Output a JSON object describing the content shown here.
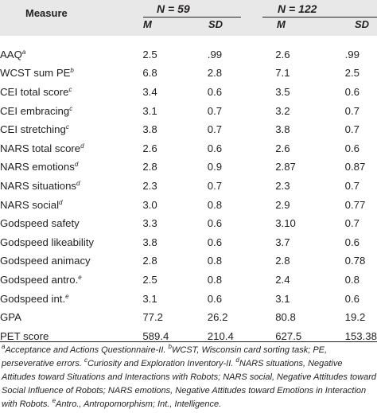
{
  "header": {
    "measure_label": "Measure",
    "groups": [
      {
        "label": "N = 59",
        "m_label": "M",
        "sd_label": "SD"
      },
      {
        "label": "N = 122",
        "m_label": "M",
        "sd_label": "SD"
      }
    ]
  },
  "rows": [
    {
      "measure": "AAQ",
      "sup": "a",
      "m1": "2.5",
      "sd1": ".99",
      "m2": "2.6",
      "sd2": ".99"
    },
    {
      "measure": "WCST sum PE",
      "sup": "b",
      "m1": "6.8",
      "sd1": "2.8",
      "m2": "7.1",
      "sd2": "2.5"
    },
    {
      "measure": "CEI total score",
      "sup": "c",
      "m1": "3.4",
      "sd1": "0.6",
      "m2": "3.5",
      "sd2": "0.6"
    },
    {
      "measure": "CEI embracing",
      "sup": "c",
      "m1": "3.1",
      "sd1": "0.7",
      "m2": "3.2",
      "sd2": "0.7"
    },
    {
      "measure": "CEI stretching",
      "sup": "c",
      "m1": "3.8",
      "sd1": "0.7",
      "m2": "3.8",
      "sd2": "0.7"
    },
    {
      "measure": "NARS total score",
      "sup": "d",
      "m1": "2.6",
      "sd1": "0.6",
      "m2": "2.6",
      "sd2": "0.6"
    },
    {
      "measure": "NARS emotions",
      "sup": "d",
      "m1": "2.8",
      "sd1": "0.9",
      "m2": "2.87",
      "sd2": "0.87"
    },
    {
      "measure": "NARS situations",
      "sup": "d",
      "m1": "2.3",
      "sd1": "0.7",
      "m2": "2.3",
      "sd2": "0.7"
    },
    {
      "measure": "NARS social",
      "sup": "d",
      "m1": "3.0",
      "sd1": "0.8",
      "m2": "2.9",
      "sd2": "0.77"
    },
    {
      "measure": "Godspeed safety",
      "sup": "",
      "m1": "3.3",
      "sd1": "0.6",
      "m2": "3.10",
      "sd2": "0.7"
    },
    {
      "measure": "Godspeed likeability",
      "sup": "",
      "m1": "3.8",
      "sd1": "0.6",
      "m2": "3.7",
      "sd2": "0.6"
    },
    {
      "measure": "Godspeed animacy",
      "sup": "",
      "m1": "2.8",
      "sd1": "0.8",
      "m2": "2.8",
      "sd2": "0.78"
    },
    {
      "measure": "Godspeed antro.",
      "sup": "e",
      "m1": "2.5",
      "sd1": "0.8",
      "m2": "2.4",
      "sd2": "0.8"
    },
    {
      "measure": "Godspeed int.",
      "sup": "e",
      "m1": "3.1",
      "sd1": "0.6",
      "m2": "3.1",
      "sd2": "0.6"
    },
    {
      "measure": "GPA",
      "sup": "",
      "m1": "77.2",
      "sd1": "26.2",
      "m2": "80.8",
      "sd2": "19.2"
    },
    {
      "measure": "PET score",
      "sup": "",
      "m1": "589.4",
      "sd1": "210.4",
      "m2": "627.5",
      "sd2": "153.38"
    }
  ],
  "footnotes": [
    {
      "sup": "a",
      "text": "Acceptance and Actions Questionnaire-II. "
    },
    {
      "sup": "b",
      "text": "WCST, Wisconsin card sorting task; PE, perseverative errors. "
    },
    {
      "sup": "c",
      "text": "Curiosity and Exploration Inventory-II. "
    },
    {
      "sup": "d",
      "text": "NARS situations, Negative Attitudes toward Situations and Interactions with Robots; NARS social, Negative Attitudes toward Social Influence of Robots; NARS emotions, Negative Attitudes toward Emotions in Interaction with Robots. "
    },
    {
      "sup": "e",
      "text": "Antro., Antropomorphism; Int., Intelligence."
    }
  ]
}
